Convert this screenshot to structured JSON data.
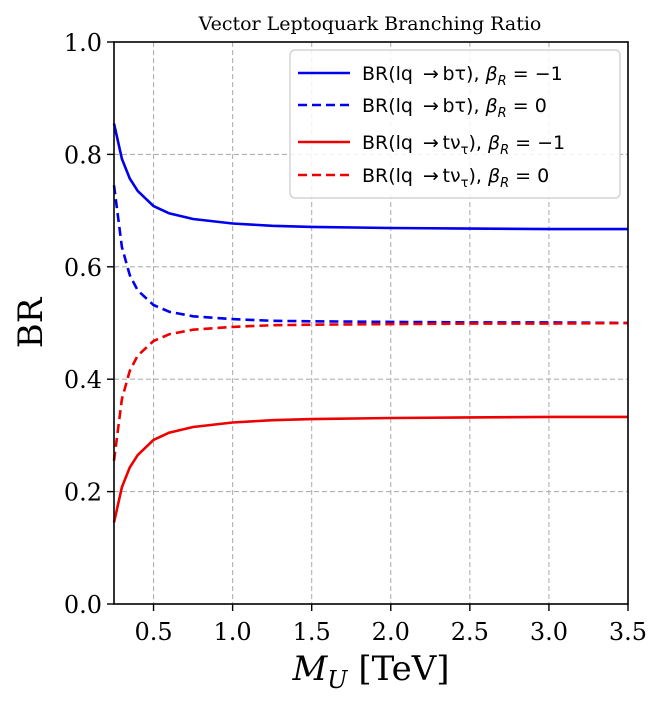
{
  "chart_data": {
    "type": "line",
    "title": "Vector Leptoquark Branching Ratio",
    "xlabel_italic": "M",
    "xlabel_sub": "U",
    "xlabel_unit": "[TeV]",
    "ylabel": "BR",
    "xlim": [
      0.25,
      3.5
    ],
    "ylim": [
      0.0,
      1.0
    ],
    "grid": true,
    "legend_position": "top-right",
    "x_ticks": [
      0.5,
      1.0,
      1.5,
      2.0,
      2.5,
      3.0,
      3.5
    ],
    "x_tick_labels": [
      "0.5",
      "1.0",
      "1.5",
      "2.0",
      "2.5",
      "3.0",
      "3.5"
    ],
    "y_ticks": [
      0.0,
      0.2,
      0.4,
      0.6,
      0.8,
      1.0
    ],
    "y_tick_labels": [
      "0.0",
      "0.2",
      "0.4",
      "0.6",
      "0.8",
      "1.0"
    ],
    "x": [
      0.25,
      0.3,
      0.35,
      0.4,
      0.5,
      0.6,
      0.75,
      1.0,
      1.25,
      1.5,
      2.0,
      2.5,
      3.0,
      3.5
    ],
    "series": [
      {
        "name": "BR(lq → bτ), β_R = −1",
        "label_main": "BR(lq  → bτ), ",
        "label_beta": "β",
        "label_sub": "R",
        "label_value": " = −1",
        "color": "#0000ee",
        "dash": "solid",
        "values": [
          0.855,
          0.792,
          0.757,
          0.735,
          0.708,
          0.695,
          0.685,
          0.677,
          0.673,
          0.671,
          0.669,
          0.668,
          0.667,
          0.667
        ]
      },
      {
        "name": "BR(lq → bτ), β_R = 0",
        "label_main": "BR(lq  → bτ), ",
        "label_beta": "β",
        "label_sub": "R",
        "label_value": " = 0",
        "color": "#0000ee",
        "dash": "dashed",
        "values": [
          0.745,
          0.635,
          0.585,
          0.558,
          0.532,
          0.52,
          0.512,
          0.507,
          0.504,
          0.503,
          0.502,
          0.501,
          0.501,
          0.5
        ]
      },
      {
        "name": "BR(lq → tν_τ), β_R = −1",
        "label_main": "BR(lq  → tν",
        "label_nu_sub": "τ",
        "label_close": "), ",
        "label_beta": "β",
        "label_sub": "R",
        "label_value": " = −1",
        "color": "#ee0000",
        "dash": "solid",
        "values": [
          0.145,
          0.208,
          0.243,
          0.265,
          0.292,
          0.305,
          0.315,
          0.323,
          0.327,
          0.329,
          0.331,
          0.332,
          0.333,
          0.333
        ]
      },
      {
        "name": "BR(lq → tν_τ), β_R = 0",
        "label_main": "BR(lq  → tν",
        "label_nu_sub": "τ",
        "label_close": "), ",
        "label_beta": "β",
        "label_sub": "R",
        "label_value": " = 0",
        "color": "#ee0000",
        "dash": "dashed",
        "values": [
          0.255,
          0.365,
          0.415,
          0.442,
          0.468,
          0.48,
          0.488,
          0.493,
          0.496,
          0.497,
          0.498,
          0.499,
          0.499,
          0.5
        ]
      }
    ]
  }
}
